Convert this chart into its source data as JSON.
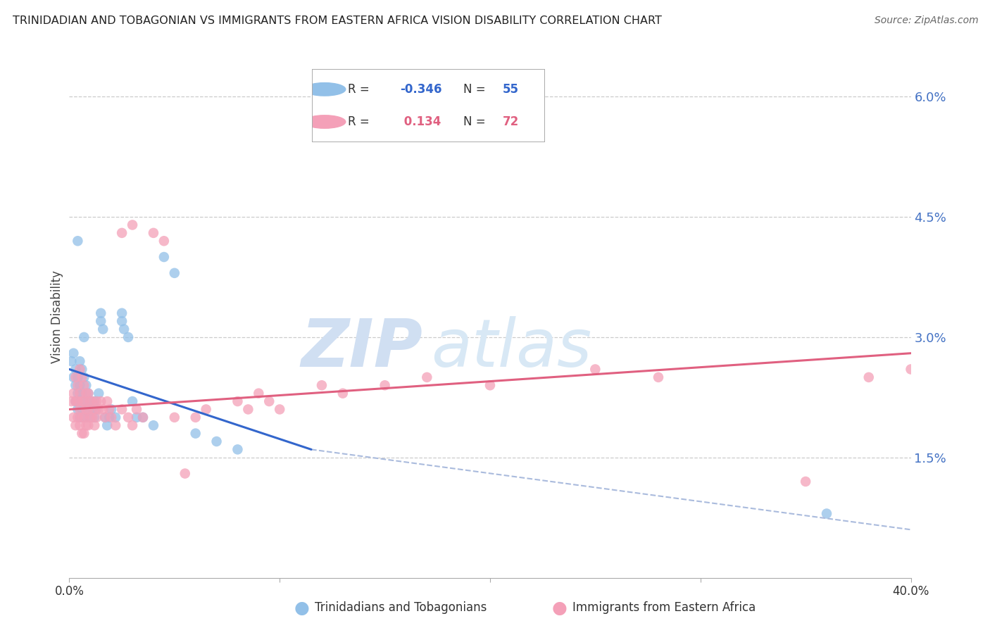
{
  "title": "TRINIDADIAN AND TOBAGONIAN VS IMMIGRANTS FROM EASTERN AFRICA VISION DISABILITY CORRELATION CHART",
  "source": "Source: ZipAtlas.com",
  "ylabel": "Vision Disability",
  "xlim": [
    0.0,
    0.4
  ],
  "ylim": [
    0.0,
    0.065
  ],
  "ytick_vals": [
    0.015,
    0.03,
    0.045,
    0.06
  ],
  "ytick_labels": [
    "1.5%",
    "3.0%",
    "4.5%",
    "6.0%"
  ],
  "background_color": "#ffffff",
  "grid_color": "#cccccc",
  "title_color": "#222222",
  "axis_label_color": "#4472c4",
  "series1_color": "#92c0e8",
  "series2_color": "#f4a0b8",
  "line1_color": "#3366cc",
  "line2_color": "#e06080",
  "line1_dash_color": "#aabbdd",
  "legend_R1": "-0.346",
  "legend_N1": "55",
  "legend_R2": "0.134",
  "legend_N2": "72",
  "legend_label1": "Trinidadians and Tobagonians",
  "legend_label2": "Immigrants from Eastern Africa",
  "watermark_zip": "ZIP",
  "watermark_atlas": "atlas",
  "line1_x0": 0.0,
  "line1_y0": 0.026,
  "line1_x1": 0.115,
  "line1_y1": 0.016,
  "line1_xdash0": 0.115,
  "line1_ydash0": 0.016,
  "line1_xdash1": 0.4,
  "line1_ydash1": 0.006,
  "line2_x0": 0.0,
  "line2_y0": 0.021,
  "line2_x1": 0.4,
  "line2_y1": 0.028
}
